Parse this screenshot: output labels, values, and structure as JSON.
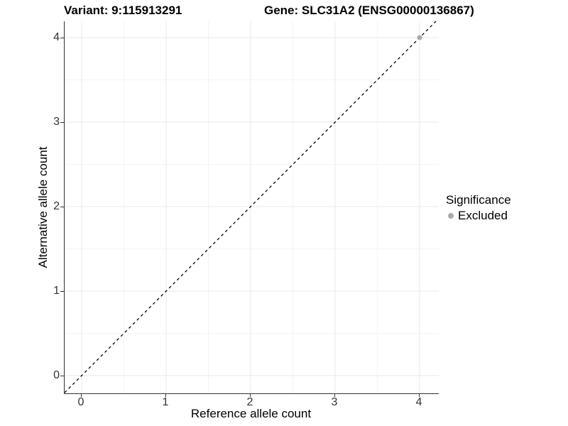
{
  "chart_data": {
    "type": "scatter",
    "title_left": "Variant: 9:115913291",
    "title_right": "Gene: SLC31A2 (ENSG00000136867)",
    "xlabel": "Reference allele count",
    "ylabel": "Alternative allele count",
    "x_ticks": [
      0,
      1,
      2,
      3,
      4
    ],
    "y_ticks": [
      0,
      1,
      2,
      3,
      4
    ],
    "xlim": [
      -0.2,
      4.23
    ],
    "ylim": [
      -0.21,
      4.19
    ],
    "grid": {
      "major_color": "#e8e8e8",
      "minor_color": "#f4f4f4",
      "minor_step": 0.5
    },
    "axis_line_color": "#333333",
    "reference_line": {
      "type": "identity",
      "style": "dashed",
      "color": "#000000"
    },
    "series": [
      {
        "name": "Excluded",
        "color": "#aaaaaa",
        "points": [
          {
            "x": 4,
            "y": 4
          }
        ]
      }
    ],
    "legend": {
      "title": "Significance",
      "position": "right",
      "entries": [
        {
          "label": "Excluded",
          "color": "#aaaaaa"
        }
      ]
    }
  }
}
